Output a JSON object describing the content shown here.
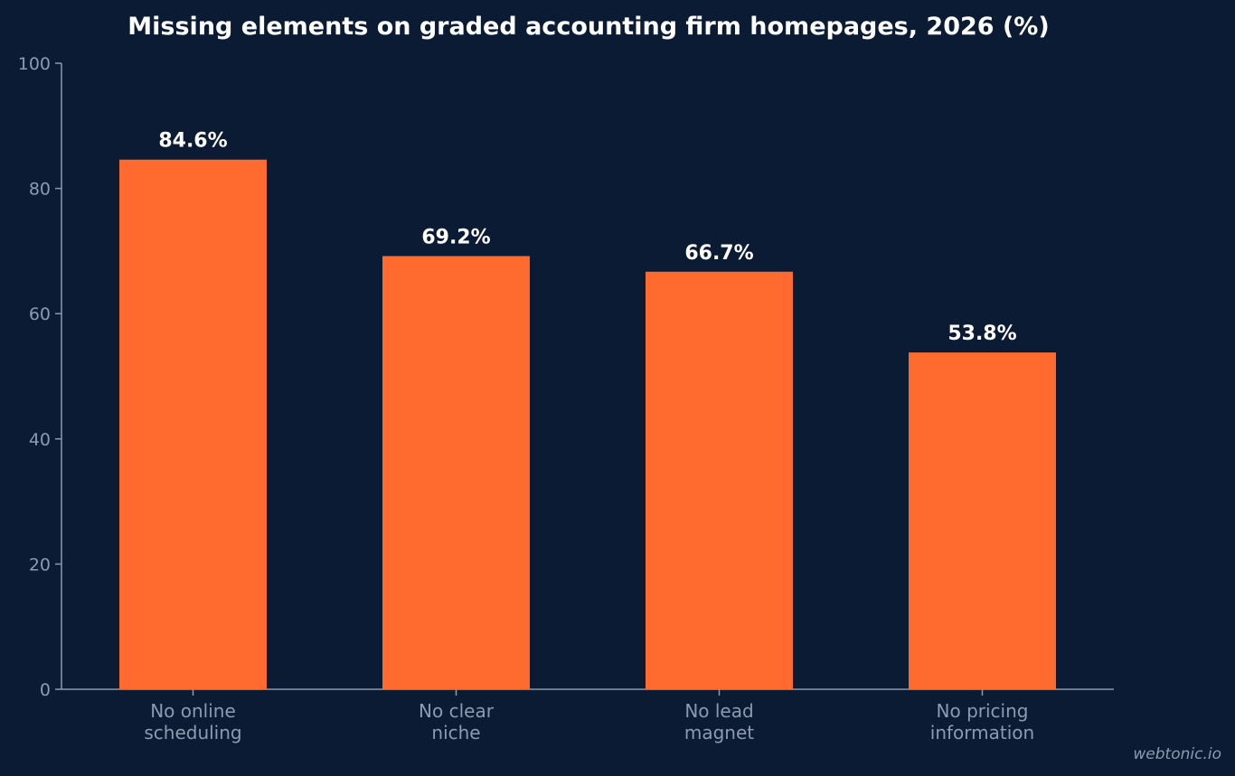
{
  "chart_data": {
    "type": "bar",
    "title": "Missing elements on graded accounting firm homepages, 2026 (%)",
    "categories": [
      [
        "No online",
        "scheduling"
      ],
      [
        "No clear",
        "niche"
      ],
      [
        "No lead",
        "magnet"
      ],
      [
        "No pricing",
        "information"
      ]
    ],
    "values": [
      84.6,
      69.2,
      66.7,
      53.8
    ],
    "value_labels": [
      "84.6%",
      "69.2%",
      "66.7%",
      "53.8%"
    ],
    "xlabel": "",
    "ylabel": "",
    "ylim": [
      0,
      100
    ],
    "yticks": [
      0,
      20,
      40,
      60,
      80,
      100
    ],
    "grid": false,
    "legend": "none",
    "bar_color": "#ff6b2e"
  },
  "watermark": "webtonic.io"
}
